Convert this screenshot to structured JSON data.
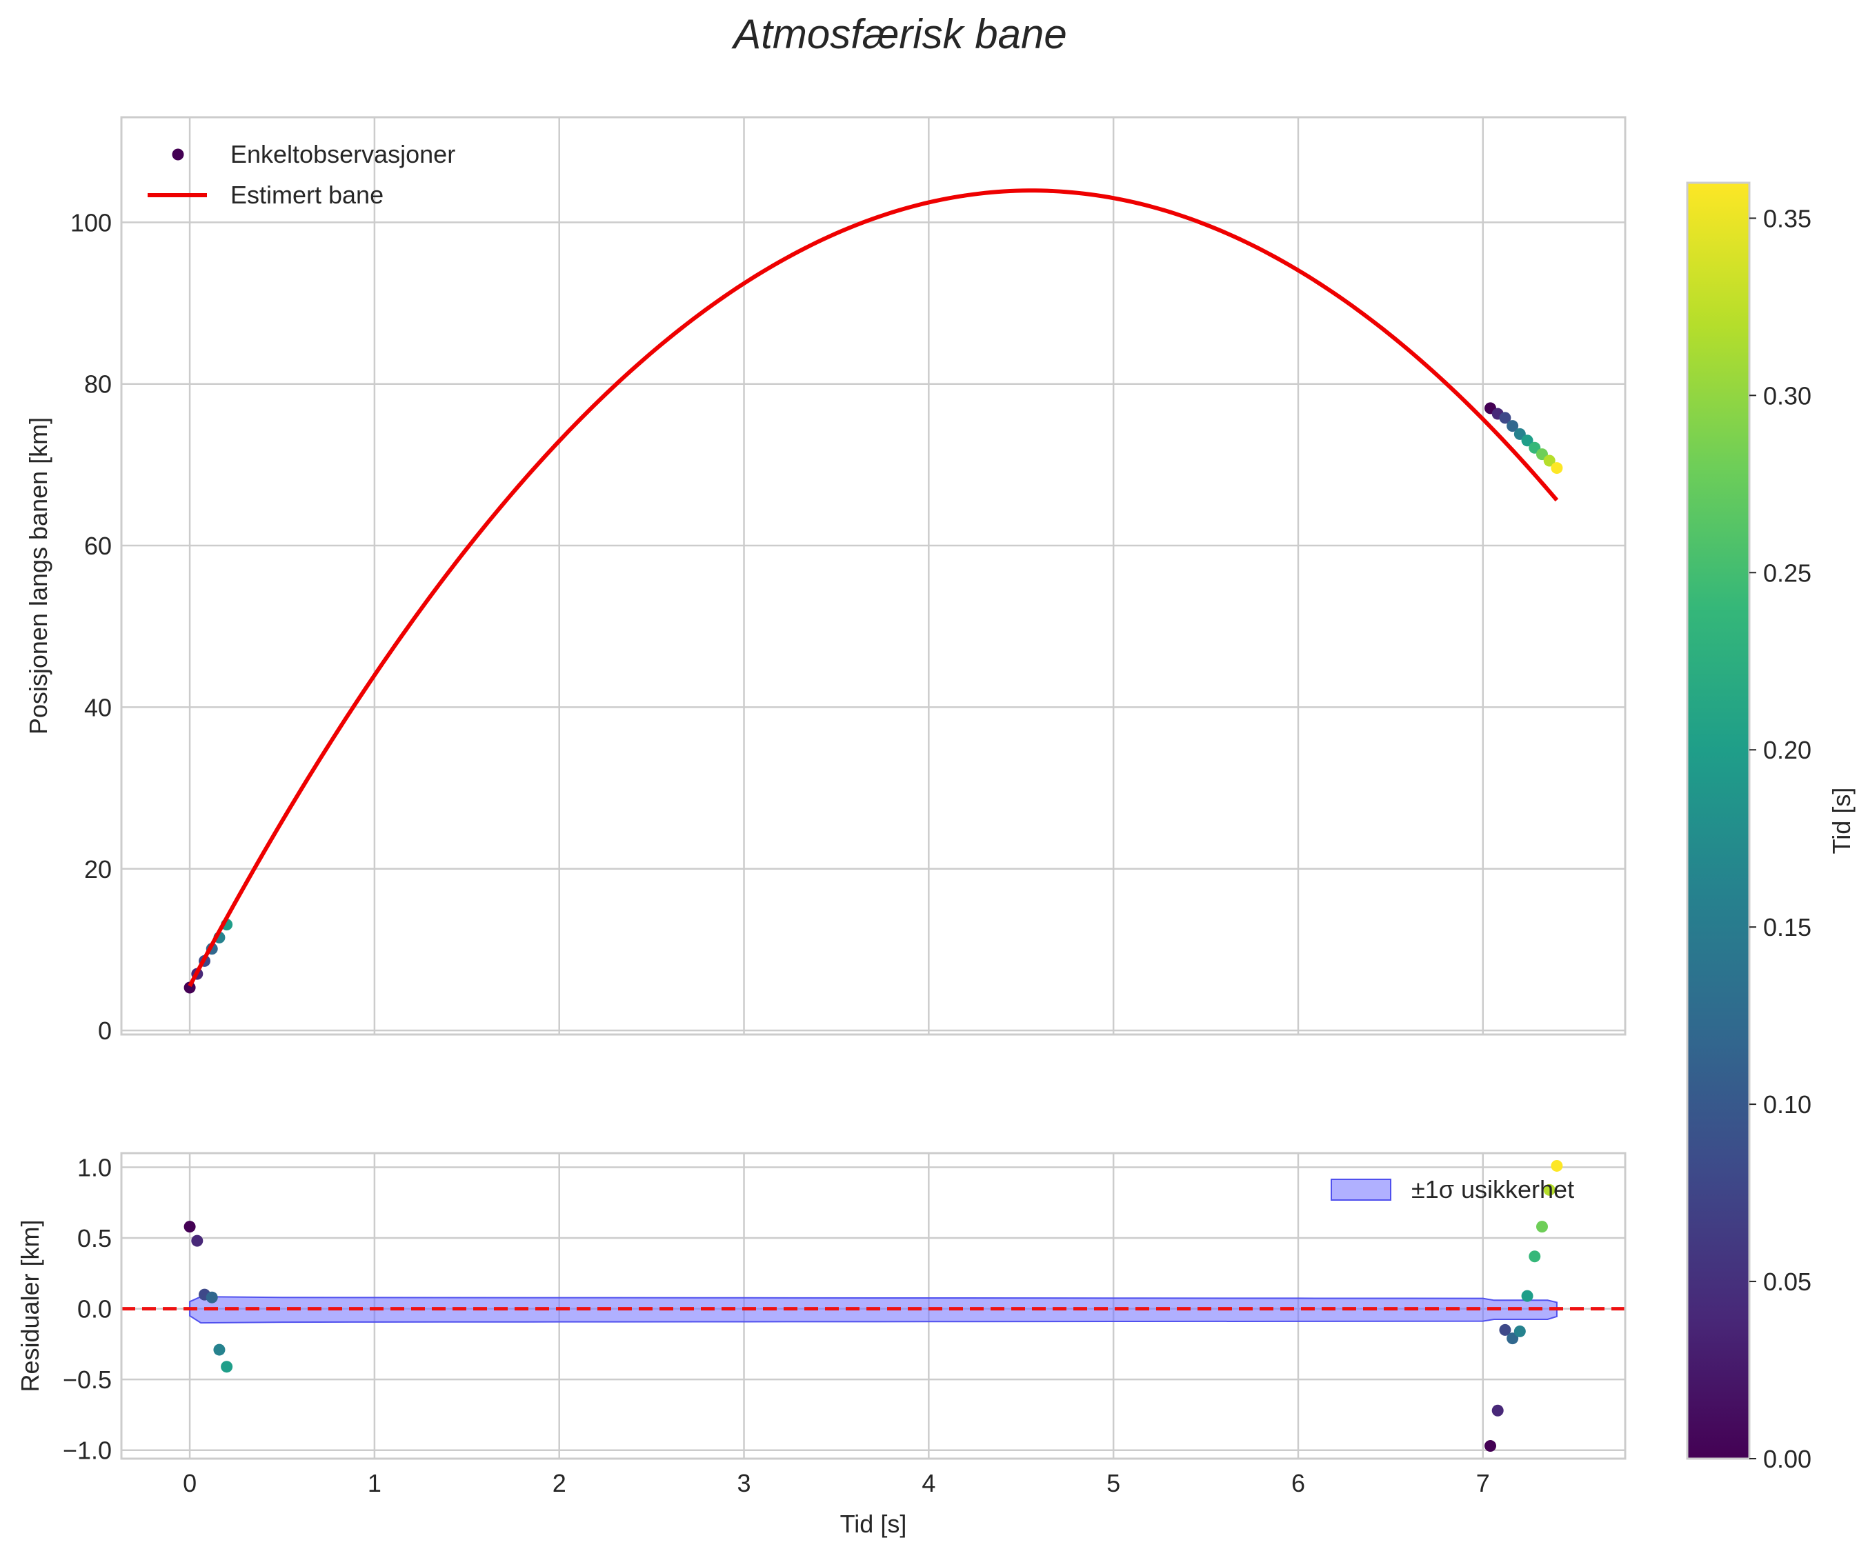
{
  "chart_data": [
    {
      "type": "scatter",
      "title": "Atmosfærisk bane",
      "xlabel": "",
      "ylabel": "Posisjonen langs banen [km]",
      "xlim": [
        -0.37,
        7.77
      ],
      "ylim": [
        -0.5,
        113.0
      ],
      "xticks": [
        0,
        1,
        2,
        3,
        4,
        5,
        6,
        7
      ],
      "yticks": [
        0,
        20,
        40,
        60,
        80,
        100
      ],
      "grid": true,
      "legend_position": "top-left",
      "series": [
        {
          "name": "Enkeltobservasjoner",
          "kind": "scatter",
          "color_by": "time",
          "points": [
            {
              "x": 0.0,
              "y": 5.3,
              "c": 0.0
            },
            {
              "x": 0.04,
              "y": 7.0,
              "c": 0.04
            },
            {
              "x": 0.08,
              "y": 8.6,
              "c": 0.08
            },
            {
              "x": 0.12,
              "y": 10.1,
              "c": 0.12
            },
            {
              "x": 0.16,
              "y": 11.5,
              "c": 0.16
            },
            {
              "x": 0.2,
              "y": 13.1,
              "c": 0.2
            },
            {
              "x": 7.04,
              "y": 77.0,
              "c": 0.0
            },
            {
              "x": 7.08,
              "y": 76.3,
              "c": 0.04
            },
            {
              "x": 7.12,
              "y": 75.8,
              "c": 0.08
            },
            {
              "x": 7.16,
              "y": 74.8,
              "c": 0.12
            },
            {
              "x": 7.2,
              "y": 73.8,
              "c": 0.16
            },
            {
              "x": 7.24,
              "y": 73.0,
              "c": 0.2
            },
            {
              "x": 7.28,
              "y": 72.1,
              "c": 0.24
            },
            {
              "x": 7.32,
              "y": 71.3,
              "c": 0.28
            },
            {
              "x": 7.36,
              "y": 70.5,
              "c": 0.32
            },
            {
              "x": 7.4,
              "y": 69.6,
              "c": 0.36
            }
          ]
        },
        {
          "name": "Estimert bane",
          "kind": "line",
          "color": "#ee0000",
          "model": {
            "type": "quadratic",
            "a": -4.74,
            "b": 43.2,
            "c": 5.5,
            "x_start": 0.0,
            "x_end": 7.4
          }
        }
      ]
    },
    {
      "type": "scatter",
      "title": "",
      "xlabel": "Tid [s]",
      "ylabel": "Residualer [km]",
      "xlim": [
        -0.37,
        7.77
      ],
      "ylim": [
        -1.06,
        1.1
      ],
      "xticks": [
        0,
        1,
        2,
        3,
        4,
        5,
        6,
        7
      ],
      "yticks": [
        -1.0,
        -0.5,
        0.0,
        0.5,
        1.0
      ],
      "ytick_labels": [
        "−1.0",
        "−0.5",
        "0.0",
        "0.5",
        "1.0"
      ],
      "grid": true,
      "legend_position": "top-right",
      "zero_line_color": "#ee1111",
      "band": {
        "name": "±1σ usikkerhet",
        "color": "#7070ff",
        "edge_color": "#5050ee",
        "x": [
          0.0,
          0.06,
          0.5,
          1,
          2,
          3,
          4,
          5,
          6,
          7.0,
          7.06,
          7.35,
          7.4
        ],
        "upper": [
          0.05,
          0.085,
          0.08,
          0.079,
          0.078,
          0.077,
          0.076,
          0.075,
          0.074,
          0.073,
          0.06,
          0.06,
          0.045
        ],
        "lower": [
          -0.05,
          -0.1,
          -0.095,
          -0.094,
          -0.093,
          -0.092,
          -0.091,
          -0.09,
          -0.089,
          -0.088,
          -0.075,
          -0.075,
          -0.055
        ]
      },
      "series": [
        {
          "name": "Residualer",
          "kind": "scatter",
          "color_by": "time",
          "points": [
            {
              "x": 0.0,
              "y": 0.58,
              "c": 0.0
            },
            {
              "x": 0.04,
              "y": 0.48,
              "c": 0.04
            },
            {
              "x": 0.08,
              "y": 0.1,
              "c": 0.08
            },
            {
              "x": 0.12,
              "y": 0.08,
              "c": 0.12
            },
            {
              "x": 0.16,
              "y": -0.29,
              "c": 0.16
            },
            {
              "x": 0.2,
              "y": -0.41,
              "c": 0.2
            },
            {
              "x": 7.04,
              "y": -0.97,
              "c": 0.0
            },
            {
              "x": 7.08,
              "y": -0.72,
              "c": 0.04
            },
            {
              "x": 7.12,
              "y": -0.15,
              "c": 0.08
            },
            {
              "x": 7.16,
              "y": -0.21,
              "c": 0.12
            },
            {
              "x": 7.2,
              "y": -0.16,
              "c": 0.16
            },
            {
              "x": 7.24,
              "y": 0.09,
              "c": 0.2
            },
            {
              "x": 7.28,
              "y": 0.37,
              "c": 0.24
            },
            {
              "x": 7.32,
              "y": 0.58,
              "c": 0.28
            },
            {
              "x": 7.36,
              "y": 0.84,
              "c": 0.32
            },
            {
              "x": 7.4,
              "y": 1.01,
              "c": 0.36
            }
          ]
        }
      ]
    }
  ],
  "colorbar": {
    "label": "Tid [s]",
    "range": [
      0.0,
      0.36
    ],
    "ticks": [
      0.0,
      0.05,
      0.1,
      0.15,
      0.2,
      0.25,
      0.3,
      0.35
    ],
    "tick_labels": [
      "0.00",
      "0.05",
      "0.10",
      "0.15",
      "0.20",
      "0.25",
      "0.30",
      "0.35"
    ],
    "colormap": "viridis",
    "stops": [
      "#440154",
      "#482878",
      "#3e4989",
      "#31688e",
      "#26828e",
      "#1f9e89",
      "#35b779",
      "#6ece58",
      "#b5de2b",
      "#fde725"
    ]
  }
}
